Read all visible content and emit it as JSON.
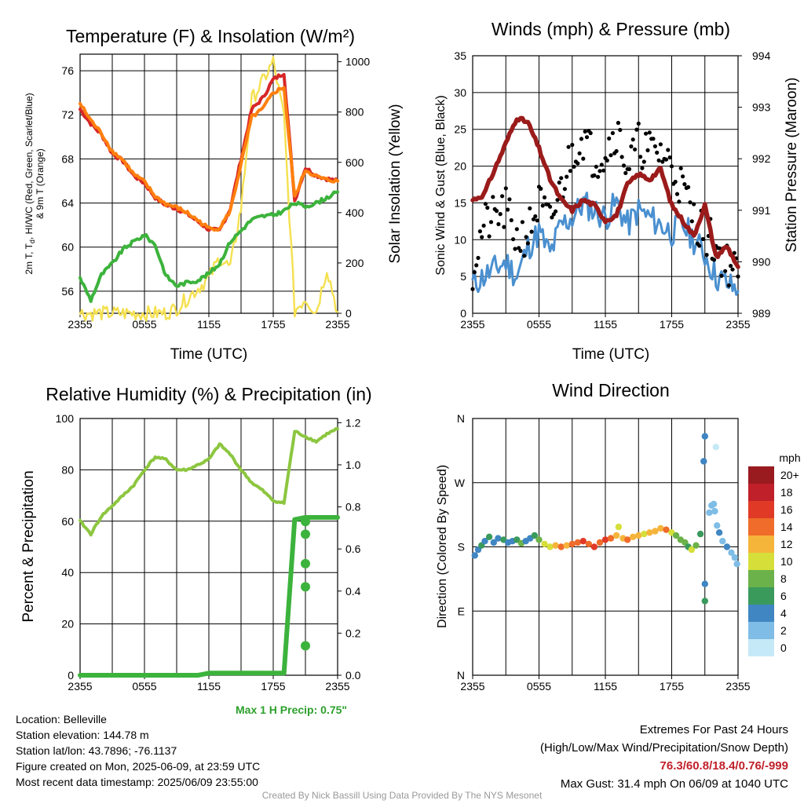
{
  "chart_data": [
    {
      "type": "line",
      "title": "Temperature (F) & Insolation (W/m²)",
      "xlabel": "Time (UTC)",
      "ylabel_left": "2m T, Td, HI/WC (Red, Green, Scarlet/Blue) & 9m T (Orange)",
      "ylabel_left_line1": "2m T, T",
      "ylabel_left_sub": "d",
      "ylabel_left_line1b": ", HI/WC (Red, Green, Scarlet/Blue)",
      "ylabel_left_line2": "& 9m T (Orange)",
      "ylabel_right": "Solar Insolation (Yellow)",
      "xticks": [
        "2355",
        "0555",
        "1155",
        "1755",
        "2355"
      ],
      "yticks_left": [
        "56",
        "60",
        "64",
        "68",
        "72",
        "76"
      ],
      "yticks_right": [
        "0",
        "200",
        "400",
        "600",
        "800",
        "1000"
      ],
      "ylim_left": [
        54,
        77.5
      ],
      "ylim_right": [
        0,
        1030
      ],
      "x_hours": [
        0,
        1,
        2,
        3,
        4,
        5,
        6,
        7,
        8,
        9,
        10,
        11,
        12,
        13,
        14,
        15,
        16,
        17,
        18,
        19,
        20,
        21,
        22,
        23,
        24
      ],
      "series": [
        {
          "name": "2m T",
          "color": "#d62728",
          "axis": "left",
          "values": [
            72.5,
            71.2,
            70.2,
            68.5,
            67.8,
            66.5,
            65.8,
            64.5,
            63.8,
            63.5,
            63.0,
            62.3,
            61.6,
            61.5,
            63.5,
            68.0,
            72.5,
            73.5,
            75.2,
            75.8,
            64.2,
            67.2,
            66.5,
            66.2,
            66.0
          ]
        },
        {
          "name": "9m T",
          "color": "#ff7f0e",
          "axis": "left",
          "values": [
            73.0,
            71.5,
            70.3,
            68.7,
            67.9,
            66.6,
            65.9,
            64.6,
            63.9,
            63.6,
            63.1,
            62.4,
            61.7,
            61.7,
            63.3,
            67.5,
            71.8,
            72.5,
            74.0,
            74.5,
            64.5,
            67.0,
            66.4,
            66.1,
            66.0
          ]
        },
        {
          "name": "Td",
          "color": "#3cb33c",
          "axis": "left",
          "values": [
            57.2,
            55.2,
            57.5,
            58.5,
            59.8,
            60.5,
            61.1,
            60.2,
            57.4,
            56.5,
            56.8,
            57.0,
            57.6,
            58.5,
            60.5,
            61.5,
            62.5,
            62.8,
            62.9,
            63.3,
            64.0,
            63.7,
            64.0,
            64.5,
            65.0
          ]
        },
        {
          "name": "Solar Insolation",
          "color": "#f5e050",
          "axis": "right",
          "values": [
            0,
            0,
            0,
            0,
            0,
            0,
            0,
            0,
            0,
            20,
            60,
            100,
            140,
            220,
            180,
            420,
            850,
            920,
            1000,
            780,
            10,
            60,
            5,
            180,
            5
          ]
        }
      ]
    },
    {
      "type": "line",
      "title": "Winds (mph) & Pressure (mb)",
      "xlabel": "Time (UTC)",
      "ylabel_left": "Sonic Wind & Gust (Blue, Black)",
      "ylabel_right": "Station Pressure (Maroon)",
      "xticks": [
        "2355",
        "0555",
        "1155",
        "1755",
        "2355"
      ],
      "yticks_left": [
        "0",
        "5",
        "10",
        "15",
        "20",
        "25",
        "30",
        "35"
      ],
      "yticks_right": [
        "989",
        "990",
        "991",
        "992",
        "993",
        "994"
      ],
      "ylim_left": [
        0,
        35
      ],
      "ylim_right": [
        989,
        994
      ],
      "x_hours": [
        0,
        1,
        2,
        3,
        4,
        5,
        6,
        7,
        8,
        9,
        10,
        11,
        12,
        13,
        14,
        15,
        16,
        17,
        18,
        19,
        20,
        21,
        22,
        23,
        24
      ],
      "series": [
        {
          "name": "Sonic Wind",
          "color": "#4a90d0",
          "axis": "left",
          "values": [
            4,
            5,
            6,
            7,
            5,
            9,
            11,
            8,
            12,
            13,
            15,
            14,
            13,
            15,
            12,
            14,
            13,
            12,
            11,
            12,
            10,
            8,
            5,
            4,
            3
          ]
        },
        {
          "name": "Gust",
          "color": "#000000",
          "axis": "left",
          "values": [
            6,
            12,
            13,
            14,
            10,
            11,
            15,
            12,
            17,
            22,
            24,
            21,
            22,
            25,
            20,
            23,
            22,
            22,
            20,
            17,
            13,
            11,
            9,
            7,
            5
          ]
        },
        {
          "name": "Station Pressure",
          "color": "#9b1b1b",
          "axis": "right",
          "values": [
            991.2,
            991.3,
            991.8,
            992.3,
            992.8,
            992.7,
            992.2,
            991.6,
            991.2,
            991.0,
            991.2,
            991.1,
            990.8,
            990.9,
            991.5,
            991.7,
            991.6,
            991.8,
            991.1,
            990.8,
            990.5,
            991.1,
            990.1,
            990.3,
            989.9
          ]
        }
      ]
    },
    {
      "type": "line",
      "title": "Relative Humidity (%) & Precipitation (in)",
      "ylabel": "Percent & Precipitation",
      "xticks": [
        "2355",
        "0555",
        "1155",
        "1755",
        "2355"
      ],
      "yticks_left": [
        "0",
        "20",
        "40",
        "60",
        "80",
        "100"
      ],
      "yticks_right": [
        "0.0",
        "0.2",
        "0.4",
        "0.6",
        "0.8",
        "1.0",
        "1.2"
      ],
      "ylim_left": [
        0,
        100
      ],
      "ylim_right": [
        0,
        1.22
      ],
      "x_hours": [
        0,
        1,
        2,
        3,
        4,
        5,
        6,
        7,
        8,
        9,
        10,
        11,
        12,
        13,
        14,
        15,
        16,
        17,
        18,
        19,
        20,
        21,
        22,
        23,
        24
      ],
      "series": [
        {
          "name": "Relative Humidity",
          "color": "#8cc63f",
          "axis": "left",
          "values": [
            60,
            55,
            62,
            66,
            70,
            74,
            80,
            85,
            84,
            80,
            80,
            82,
            84,
            90,
            86,
            80,
            75,
            72,
            68,
            67,
            95,
            93,
            91,
            94,
            96
          ]
        },
        {
          "name": "Precipitation",
          "color": "#3cb33c",
          "axis": "right",
          "values": [
            0,
            0,
            0,
            0,
            0,
            0,
            0,
            0,
            0,
            0,
            0,
            0,
            0.01,
            0.01,
            0.01,
            0.01,
            0.01,
            0.01,
            0.01,
            0.01,
            0.74,
            0.75,
            0.75,
            0.75,
            0.75
          ]
        }
      ],
      "precip_step_points": [
        [
          21.0,
          0.14
        ],
        [
          21.0,
          0.42
        ],
        [
          21.0,
          0.53
        ],
        [
          21.0,
          0.67
        ],
        [
          21.0,
          0.73
        ]
      ],
      "max_precip_label": "Max 1 H Precip: 0.75\""
    },
    {
      "type": "scatter",
      "title": "Wind Direction",
      "ylabel": "Direction (Colored By Speed)",
      "xticks": [
        "2355",
        "0555",
        "1155",
        "1755",
        "2355"
      ],
      "yticks": [
        "N",
        "E",
        "S",
        "W",
        "N"
      ],
      "ylim": [
        0,
        360
      ],
      "legend_title": "mph",
      "legend_labels": [
        "0",
        "2",
        "4",
        "6",
        "8",
        "10",
        "12",
        "14",
        "16",
        "18",
        "20+"
      ],
      "legend_colors": [
        "#c6e9f7",
        "#7fbde6",
        "#3f86c2",
        "#3a9a5c",
        "#6cb24a",
        "#d6df3a",
        "#f5b43a",
        "#ef6c2a",
        "#e03a27",
        "#c0202a",
        "#991a1f"
      ],
      "points": [
        {
          "x": 0.2,
          "y": 168,
          "s": 4
        },
        {
          "x": 0.5,
          "y": 176,
          "s": 5
        },
        {
          "x": 0.8,
          "y": 182,
          "s": 6
        },
        {
          "x": 1.1,
          "y": 188,
          "s": 4
        },
        {
          "x": 1.5,
          "y": 194,
          "s": 6
        },
        {
          "x": 1.9,
          "y": 186,
          "s": 5
        },
        {
          "x": 2.3,
          "y": 192,
          "s": 4
        },
        {
          "x": 2.8,
          "y": 190,
          "s": 7
        },
        {
          "x": 3.2,
          "y": 186,
          "s": 5
        },
        {
          "x": 3.6,
          "y": 188,
          "s": 4
        },
        {
          "x": 4.0,
          "y": 190,
          "s": 6
        },
        {
          "x": 4.4,
          "y": 185,
          "s": 8
        },
        {
          "x": 4.8,
          "y": 188,
          "s": 4
        },
        {
          "x": 5.2,
          "y": 192,
          "s": 5
        },
        {
          "x": 5.6,
          "y": 196,
          "s": 6
        },
        {
          "x": 6.0,
          "y": 190,
          "s": 8
        },
        {
          "x": 6.5,
          "y": 184,
          "s": 10
        },
        {
          "x": 7.0,
          "y": 180,
          "s": 11
        },
        {
          "x": 7.5,
          "y": 182,
          "s": 12
        },
        {
          "x": 8.0,
          "y": 180,
          "s": 14
        },
        {
          "x": 8.5,
          "y": 182,
          "s": 13
        },
        {
          "x": 9.0,
          "y": 184,
          "s": 15
        },
        {
          "x": 9.5,
          "y": 186,
          "s": 14
        },
        {
          "x": 10.0,
          "y": 188,
          "s": 16
        },
        {
          "x": 10.5,
          "y": 184,
          "s": 15
        },
        {
          "x": 11.0,
          "y": 180,
          "s": 17
        },
        {
          "x": 11.5,
          "y": 186,
          "s": 15
        },
        {
          "x": 12.0,
          "y": 190,
          "s": 16
        },
        {
          "x": 12.5,
          "y": 192,
          "s": 14
        },
        {
          "x": 13.0,
          "y": 196,
          "s": 12
        },
        {
          "x": 13.2,
          "y": 208,
          "s": 11
        },
        {
          "x": 13.6,
          "y": 192,
          "s": 13
        },
        {
          "x": 14.0,
          "y": 190,
          "s": 14
        },
        {
          "x": 14.5,
          "y": 194,
          "s": 12
        },
        {
          "x": 15.0,
          "y": 196,
          "s": 13
        },
        {
          "x": 15.5,
          "y": 198,
          "s": 11
        },
        {
          "x": 16.0,
          "y": 200,
          "s": 12
        },
        {
          "x": 16.5,
          "y": 202,
          "s": 13
        },
        {
          "x": 17.0,
          "y": 206,
          "s": 12
        },
        {
          "x": 17.5,
          "y": 204,
          "s": 14
        },
        {
          "x": 18.0,
          "y": 200,
          "s": 11
        },
        {
          "x": 18.4,
          "y": 196,
          "s": 9
        },
        {
          "x": 18.8,
          "y": 190,
          "s": 8
        },
        {
          "x": 19.2,
          "y": 186,
          "s": 9
        },
        {
          "x": 19.5,
          "y": 180,
          "s": 7
        },
        {
          "x": 19.8,
          "y": 176,
          "s": 10
        },
        {
          "x": 20.2,
          "y": 182,
          "s": 8
        },
        {
          "x": 20.6,
          "y": 198,
          "s": 6
        },
        {
          "x": 20.9,
          "y": 300,
          "s": 4
        },
        {
          "x": 21.0,
          "y": 335,
          "s": 4
        },
        {
          "x": 21.0,
          "y": 128,
          "s": 4
        },
        {
          "x": 21.0,
          "y": 104,
          "s": 6
        },
        {
          "x": 21.4,
          "y": 228,
          "s": 3
        },
        {
          "x": 21.6,
          "y": 238,
          "s": 2
        },
        {
          "x": 21.8,
          "y": 240,
          "s": 2
        },
        {
          "x": 22.0,
          "y": 320,
          "s": 1
        },
        {
          "x": 21.9,
          "y": 230,
          "s": 2
        },
        {
          "x": 22.1,
          "y": 210,
          "s": 2
        },
        {
          "x": 22.3,
          "y": 200,
          "s": 4
        },
        {
          "x": 22.6,
          "y": 188,
          "s": 3
        },
        {
          "x": 23.0,
          "y": 180,
          "s": 4
        },
        {
          "x": 23.4,
          "y": 172,
          "s": 3
        },
        {
          "x": 23.7,
          "y": 165,
          "s": 2
        },
        {
          "x": 23.9,
          "y": 156,
          "s": 2
        }
      ]
    }
  ],
  "station": {
    "location": "Location: Belleville",
    "elevation": "Station elevation: 144.78 m",
    "latlon": "Station lat/lon: 43.7896; -76.1137",
    "created": "Figure created on Mon, 2025-06-09, at 23:59 UTC",
    "recent": "Most recent data timestamp: 2025/06/09 23:55:00"
  },
  "extremes": {
    "title": "Extremes For Past 24 Hours",
    "subtitle": "(High/Low/Max Wind/Precipitation/Snow Depth)",
    "values": "76.3/60.8/18.4/0.76/-999",
    "max_gust": "Max Gust: 31.4 mph On 06/09 at 1040 UTC"
  },
  "credit": "Created By Nick Bassill Using Data Provided By The NYS Mesonet",
  "colors": {
    "extremes_value": "#c0202a",
    "max_precip": "#2ca02c"
  }
}
